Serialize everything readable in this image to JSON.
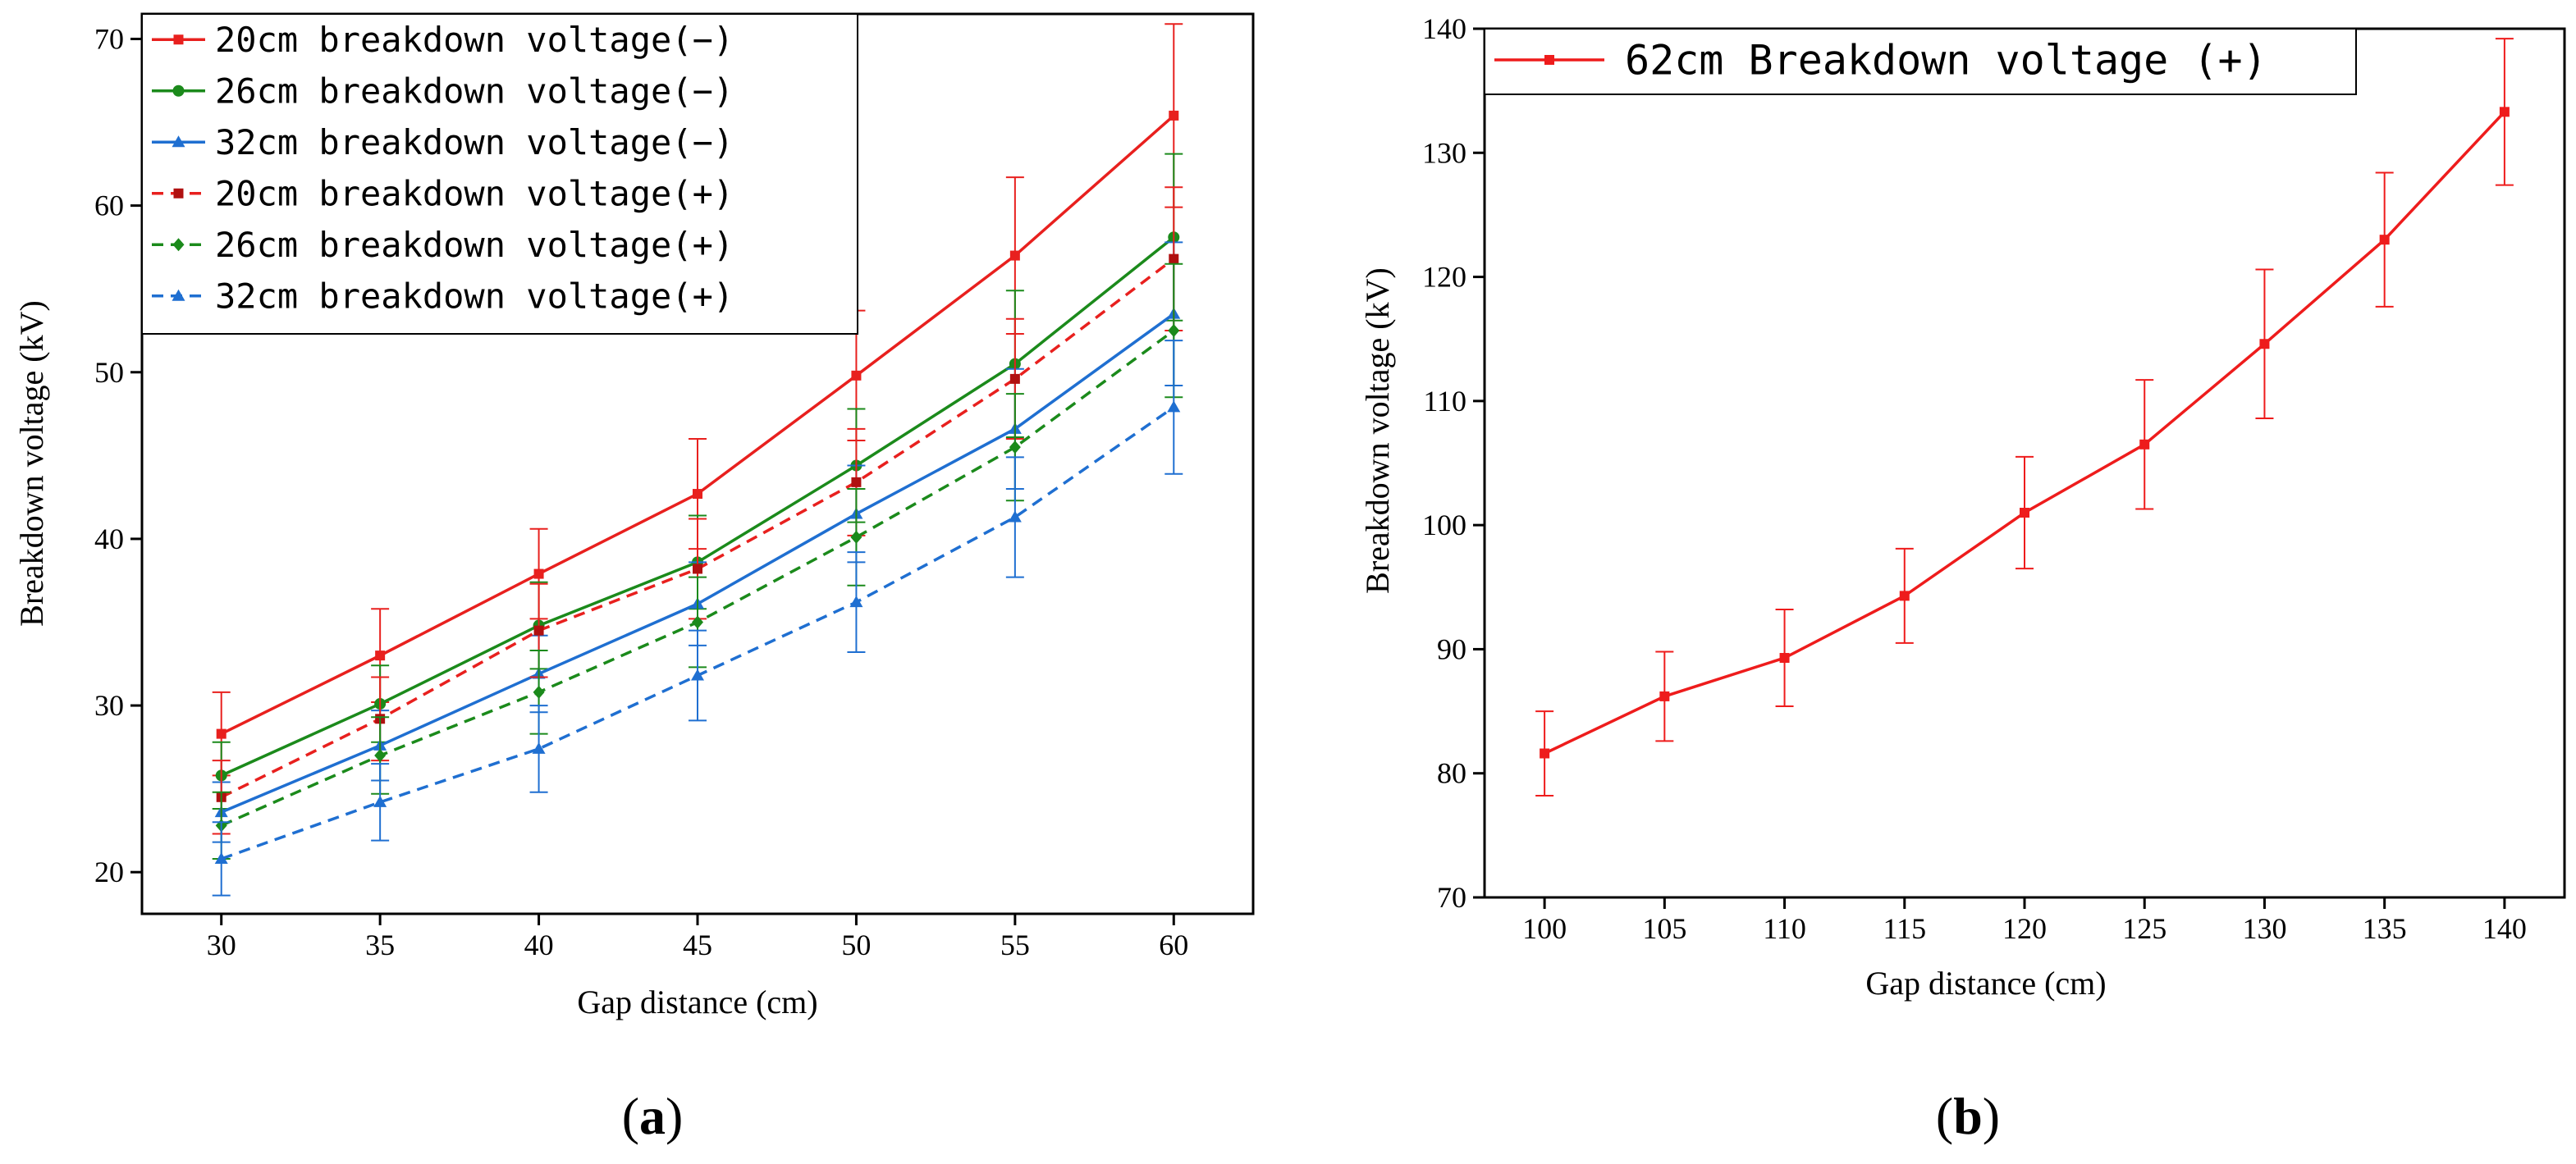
{
  "chart_data": [
    {
      "panel": "(a)",
      "panel_letter": "a",
      "type": "line",
      "xlabel": "Gap distance (cm)",
      "ylabel": "Breakdown voltage (kV)",
      "xlim": [
        27.5,
        62.5
      ],
      "ylim": [
        17.5,
        71.5
      ],
      "xticks": [
        30,
        35,
        40,
        45,
        50,
        55,
        60
      ],
      "yticks": [
        20,
        30,
        40,
        50,
        60,
        70
      ],
      "x": [
        30,
        35,
        40,
        45,
        50,
        55,
        60
      ],
      "legend_position": "top-left",
      "series": [
        {
          "name": "20cm breakdown voltage(−)",
          "color": "#e8201e",
          "dash": "solid",
          "marker": "square",
          "values": [
            28.3,
            33.0,
            37.9,
            42.7,
            49.8,
            57.0,
            65.4
          ],
          "errors": [
            2.5,
            2.8,
            2.7,
            3.3,
            3.9,
            4.7,
            5.5
          ]
        },
        {
          "name": "26cm breakdown voltage(−)",
          "color": "#1b8a1b",
          "dash": "solid",
          "marker": "circle",
          "values": [
            25.8,
            30.1,
            34.8,
            38.6,
            44.4,
            50.5,
            58.1
          ],
          "errors": [
            2.0,
            2.3,
            2.6,
            2.8,
            3.4,
            4.4,
            5.0
          ]
        },
        {
          "name": "32cm breakdown voltage(−)",
          "color": "#1f6fd1",
          "dash": "solid",
          "marker": "triangle",
          "values": [
            23.6,
            27.6,
            31.9,
            36.1,
            41.5,
            46.6,
            53.5
          ],
          "errors": [
            1.8,
            2.1,
            2.3,
            2.5,
            2.9,
            3.6,
            4.3
          ]
        },
        {
          "name": "20cm breakdown voltage(+)",
          "color": "#e8201e",
          "dash": "dashed",
          "marker": "square-dark",
          "values": [
            24.5,
            29.2,
            34.5,
            38.2,
            43.4,
            49.6,
            56.8
          ],
          "errors": [
            2.2,
            2.5,
            2.8,
            3.0,
            3.2,
            3.6,
            4.3
          ]
        },
        {
          "name": "26cm breakdown voltage(+)",
          "color": "#1b8a1b",
          "dash": "dashed",
          "marker": "diamond",
          "values": [
            22.8,
            27.0,
            30.8,
            35.0,
            40.1,
            45.5,
            52.5
          ],
          "errors": [
            2.0,
            2.3,
            2.5,
            2.7,
            2.9,
            3.2,
            4.0
          ]
        },
        {
          "name": "32cm breakdown voltage(+)",
          "color": "#1f6fd1",
          "dash": "dashed",
          "marker": "triangle",
          "values": [
            20.8,
            24.2,
            27.4,
            31.8,
            36.2,
            41.3,
            47.9
          ],
          "errors": [
            2.2,
            2.3,
            2.6,
            2.7,
            3.0,
            3.6,
            4.0
          ]
        }
      ]
    },
    {
      "panel": "(b)",
      "panel_letter": "b",
      "type": "line",
      "xlabel": "Gap distance (cm)",
      "ylabel": "Breakdown voltage (kV)",
      "xlim": [
        97.5,
        142.5
      ],
      "ylim": [
        70,
        140
      ],
      "xticks": [
        100,
        105,
        110,
        115,
        120,
        125,
        130,
        135,
        140
      ],
      "yticks": [
        70,
        80,
        90,
        100,
        110,
        120,
        130,
        140
      ],
      "x": [
        100,
        105,
        110,
        115,
        120,
        125,
        130,
        135,
        140
      ],
      "legend_position": "top-left",
      "series": [
        {
          "name": "62cm Breakdown voltage (+)",
          "color": "#ee1c1c",
          "dash": "solid",
          "marker": "square",
          "values": [
            81.6,
            86.2,
            89.3,
            94.3,
            101.0,
            106.5,
            114.6,
            123.0,
            133.3
          ],
          "errors": [
            3.4,
            3.6,
            3.9,
            3.8,
            4.5,
            5.2,
            6.0,
            5.4,
            5.9
          ]
        }
      ]
    }
  ]
}
